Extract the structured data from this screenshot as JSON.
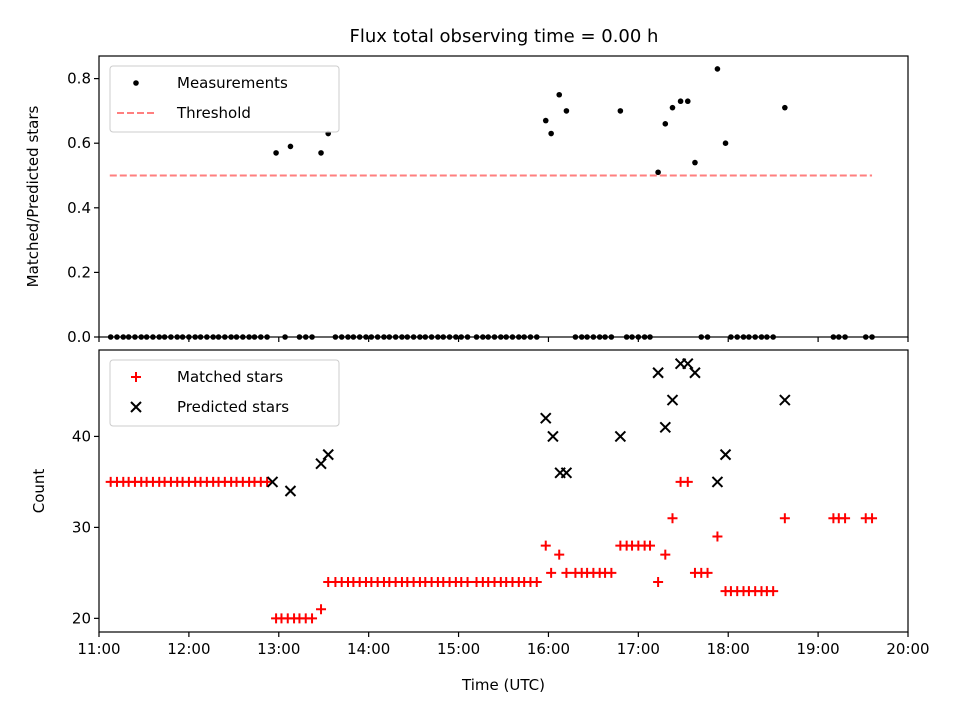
{
  "title": "Flux total observing time = 0.00 h",
  "colors": {
    "measurement": "#000000",
    "threshold": "#ff7f7f",
    "matched": "#ff0000",
    "predicted": "#000000",
    "axis": "#000000"
  },
  "chart_data": [
    {
      "type": "scatter",
      "ylabel": "Matched/Predicted stars",
      "xlabel": "",
      "xlim": [
        11.0,
        20.0
      ],
      "ylim": [
        0.0,
        0.87
      ],
      "yticks": [
        0.0,
        0.2,
        0.4,
        0.6,
        0.8
      ],
      "ytick_labels": [
        "0.0",
        "0.2",
        "0.4",
        "0.6",
        "0.8"
      ],
      "legend_position": "top-left",
      "threshold": {
        "name": "Threshold",
        "y": 0.5,
        "x": [
          11.12,
          19.6
        ],
        "style": "dashed"
      },
      "series": [
        {
          "name": "Measurements",
          "marker": "dot",
          "points": [
            [
              11.13,
              0
            ],
            [
              11.2,
              0
            ],
            [
              11.27,
              0
            ],
            [
              11.33,
              0
            ],
            [
              11.4,
              0
            ],
            [
              11.47,
              0
            ],
            [
              11.53,
              0
            ],
            [
              11.6,
              0
            ],
            [
              11.67,
              0
            ],
            [
              11.73,
              0
            ],
            [
              11.8,
              0
            ],
            [
              11.87,
              0
            ],
            [
              11.93,
              0
            ],
            [
              12.0,
              0
            ],
            [
              12.07,
              0
            ],
            [
              12.13,
              0
            ],
            [
              12.2,
              0
            ],
            [
              12.27,
              0
            ],
            [
              12.33,
              0
            ],
            [
              12.4,
              0
            ],
            [
              12.47,
              0
            ],
            [
              12.53,
              0
            ],
            [
              12.6,
              0
            ],
            [
              12.67,
              0
            ],
            [
              12.73,
              0
            ],
            [
              12.8,
              0
            ],
            [
              12.87,
              0
            ],
            [
              12.97,
              0.57
            ],
            [
              13.07,
              0
            ],
            [
              13.13,
              0.59
            ],
            [
              13.23,
              0
            ],
            [
              13.3,
              0
            ],
            [
              13.37,
              0
            ],
            [
              13.47,
              0.57
            ],
            [
              13.55,
              0.63
            ],
            [
              13.63,
              0
            ],
            [
              13.7,
              0
            ],
            [
              13.77,
              0
            ],
            [
              13.83,
              0
            ],
            [
              13.9,
              0
            ],
            [
              13.97,
              0
            ],
            [
              14.03,
              0
            ],
            [
              14.1,
              0
            ],
            [
              14.17,
              0
            ],
            [
              14.23,
              0
            ],
            [
              14.3,
              0
            ],
            [
              14.37,
              0
            ],
            [
              14.43,
              0
            ],
            [
              14.5,
              0
            ],
            [
              14.57,
              0
            ],
            [
              14.63,
              0
            ],
            [
              14.7,
              0
            ],
            [
              14.77,
              0
            ],
            [
              14.83,
              0
            ],
            [
              14.9,
              0
            ],
            [
              14.97,
              0
            ],
            [
              15.03,
              0
            ],
            [
              15.1,
              0
            ],
            [
              15.2,
              0
            ],
            [
              15.27,
              0
            ],
            [
              15.33,
              0
            ],
            [
              15.4,
              0
            ],
            [
              15.47,
              0
            ],
            [
              15.53,
              0
            ],
            [
              15.6,
              0
            ],
            [
              15.67,
              0
            ],
            [
              15.73,
              0
            ],
            [
              15.8,
              0
            ],
            [
              15.87,
              0
            ],
            [
              15.97,
              0.67
            ],
            [
              16.03,
              0.63
            ],
            [
              16.12,
              0.75
            ],
            [
              16.2,
              0.7
            ],
            [
              16.3,
              0
            ],
            [
              16.37,
              0
            ],
            [
              16.43,
              0
            ],
            [
              16.5,
              0
            ],
            [
              16.57,
              0
            ],
            [
              16.63,
              0
            ],
            [
              16.7,
              0
            ],
            [
              16.8,
              0.7
            ],
            [
              16.87,
              0
            ],
            [
              16.93,
              0
            ],
            [
              17.0,
              0
            ],
            [
              17.07,
              0
            ],
            [
              17.13,
              0
            ],
            [
              17.22,
              0.51
            ],
            [
              17.3,
              0.66
            ],
            [
              17.38,
              0.71
            ],
            [
              17.47,
              0.73
            ],
            [
              17.55,
              0.73
            ],
            [
              17.63,
              0.54
            ],
            [
              17.7,
              0
            ],
            [
              17.77,
              0
            ],
            [
              17.88,
              0.83
            ],
            [
              17.97,
              0.6
            ],
            [
              18.03,
              0
            ],
            [
              18.1,
              0
            ],
            [
              18.17,
              0
            ],
            [
              18.23,
              0
            ],
            [
              18.3,
              0
            ],
            [
              18.37,
              0
            ],
            [
              18.43,
              0
            ],
            [
              18.5,
              0
            ],
            [
              18.63,
              0.71
            ],
            [
              19.17,
              0
            ],
            [
              19.23,
              0
            ],
            [
              19.3,
              0
            ],
            [
              19.53,
              0
            ],
            [
              19.6,
              0
            ]
          ]
        }
      ]
    },
    {
      "type": "scatter",
      "ylabel": "Count",
      "xlabel": "Time (UTC)",
      "xlim": [
        11.0,
        20.0
      ],
      "ylim": [
        18.5,
        49.5
      ],
      "yticks": [
        20,
        30,
        40
      ],
      "ytick_labels": [
        "20",
        "30",
        "40"
      ],
      "xticks": [
        11,
        12,
        13,
        14,
        15,
        16,
        17,
        18,
        19,
        20
      ],
      "xtick_labels": [
        "11:00",
        "12:00",
        "13:00",
        "14:00",
        "15:00",
        "16:00",
        "17:00",
        "18:00",
        "19:00",
        "20:00"
      ],
      "legend_position": "top-left",
      "series": [
        {
          "name": "Matched stars",
          "marker": "plus",
          "points": [
            [
              11.13,
              35
            ],
            [
              11.2,
              35
            ],
            [
              11.27,
              35
            ],
            [
              11.33,
              35
            ],
            [
              11.4,
              35
            ],
            [
              11.47,
              35
            ],
            [
              11.53,
              35
            ],
            [
              11.6,
              35
            ],
            [
              11.67,
              35
            ],
            [
              11.73,
              35
            ],
            [
              11.8,
              35
            ],
            [
              11.87,
              35
            ],
            [
              11.93,
              35
            ],
            [
              12.0,
              35
            ],
            [
              12.07,
              35
            ],
            [
              12.13,
              35
            ],
            [
              12.2,
              35
            ],
            [
              12.27,
              35
            ],
            [
              12.33,
              35
            ],
            [
              12.4,
              35
            ],
            [
              12.47,
              35
            ],
            [
              12.53,
              35
            ],
            [
              12.6,
              35
            ],
            [
              12.67,
              35
            ],
            [
              12.73,
              35
            ],
            [
              12.8,
              35
            ],
            [
              12.87,
              35
            ],
            [
              12.97,
              20
            ],
            [
              13.03,
              20
            ],
            [
              13.1,
              20
            ],
            [
              13.17,
              20
            ],
            [
              13.23,
              20
            ],
            [
              13.3,
              20
            ],
            [
              13.37,
              20
            ],
            [
              13.47,
              21
            ],
            [
              13.55,
              24
            ],
            [
              13.63,
              24
            ],
            [
              13.7,
              24
            ],
            [
              13.77,
              24
            ],
            [
              13.83,
              24
            ],
            [
              13.9,
              24
            ],
            [
              13.97,
              24
            ],
            [
              14.03,
              24
            ],
            [
              14.1,
              24
            ],
            [
              14.17,
              24
            ],
            [
              14.23,
              24
            ],
            [
              14.3,
              24
            ],
            [
              14.37,
              24
            ],
            [
              14.43,
              24
            ],
            [
              14.5,
              24
            ],
            [
              14.57,
              24
            ],
            [
              14.63,
              24
            ],
            [
              14.7,
              24
            ],
            [
              14.77,
              24
            ],
            [
              14.83,
              24
            ],
            [
              14.9,
              24
            ],
            [
              14.97,
              24
            ],
            [
              15.03,
              24
            ],
            [
              15.1,
              24
            ],
            [
              15.2,
              24
            ],
            [
              15.27,
              24
            ],
            [
              15.33,
              24
            ],
            [
              15.4,
              24
            ],
            [
              15.47,
              24
            ],
            [
              15.53,
              24
            ],
            [
              15.6,
              24
            ],
            [
              15.67,
              24
            ],
            [
              15.73,
              24
            ],
            [
              15.8,
              24
            ],
            [
              15.87,
              24
            ],
            [
              15.97,
              28
            ],
            [
              16.03,
              25
            ],
            [
              16.12,
              27
            ],
            [
              16.2,
              25
            ],
            [
              16.3,
              25
            ],
            [
              16.37,
              25
            ],
            [
              16.43,
              25
            ],
            [
              16.5,
              25
            ],
            [
              16.57,
              25
            ],
            [
              16.63,
              25
            ],
            [
              16.7,
              25
            ],
            [
              16.8,
              28
            ],
            [
              16.87,
              28
            ],
            [
              16.93,
              28
            ],
            [
              17.0,
              28
            ],
            [
              17.07,
              28
            ],
            [
              17.13,
              28
            ],
            [
              17.22,
              24
            ],
            [
              17.3,
              27
            ],
            [
              17.38,
              31
            ],
            [
              17.47,
              35
            ],
            [
              17.55,
              35
            ],
            [
              17.63,
              25
            ],
            [
              17.7,
              25
            ],
            [
              17.77,
              25
            ],
            [
              17.88,
              29
            ],
            [
              17.97,
              23
            ],
            [
              18.03,
              23
            ],
            [
              18.1,
              23
            ],
            [
              18.17,
              23
            ],
            [
              18.23,
              23
            ],
            [
              18.3,
              23
            ],
            [
              18.37,
              23
            ],
            [
              18.43,
              23
            ],
            [
              18.5,
              23
            ],
            [
              18.63,
              31
            ],
            [
              19.17,
              31
            ],
            [
              19.23,
              31
            ],
            [
              19.3,
              31
            ],
            [
              19.53,
              31
            ],
            [
              19.6,
              31
            ]
          ]
        },
        {
          "name": "Predicted stars",
          "marker": "x",
          "points": [
            [
              12.93,
              35
            ],
            [
              13.13,
              34
            ],
            [
              13.47,
              37
            ],
            [
              13.55,
              38
            ],
            [
              15.97,
              42
            ],
            [
              16.05,
              40
            ],
            [
              16.13,
              36
            ],
            [
              16.2,
              36
            ],
            [
              16.8,
              40
            ],
            [
              17.22,
              47
            ],
            [
              17.3,
              41
            ],
            [
              17.38,
              44
            ],
            [
              17.47,
              48
            ],
            [
              17.55,
              48
            ],
            [
              17.63,
              47
            ],
            [
              17.88,
              35
            ],
            [
              17.97,
              38
            ],
            [
              18.63,
              44
            ]
          ]
        }
      ]
    }
  ]
}
